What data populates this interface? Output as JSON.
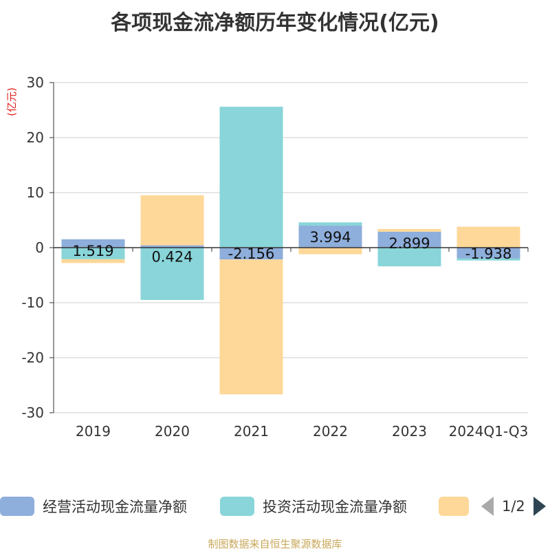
{
  "title": "各项现金流净额历年变化情况(亿元)",
  "source": "制图数据来自恒生聚源数据库",
  "legend_pager": "1/2",
  "chart_data": {
    "type": "bar",
    "stacked": true,
    "ylabel": "(亿元)",
    "ylim": [
      -30,
      30
    ],
    "yticks": [
      30,
      20,
      10,
      0,
      -10,
      -20,
      -30
    ],
    "grid": true,
    "legend_position": "bottom",
    "categories": [
      "2019",
      "2020",
      "2021",
      "2022",
      "2023",
      "2024Q1-Q3"
    ],
    "series": [
      {
        "name": "经营活动现金流量净额",
        "color": "#8eaedb",
        "values": [
          1.519,
          0.424,
          -2.156,
          3.994,
          2.899,
          -1.938
        ],
        "labels": [
          "1.519",
          "0.424",
          "-2.156",
          "3.994",
          "2.899",
          "-1.938"
        ]
      },
      {
        "name": "投资活动现金流量净额",
        "color": "#89d5d9",
        "values": [
          -2.1,
          -9.5,
          25.6,
          0.6,
          -3.4,
          -0.4
        ]
      },
      {
        "name": "",
        "color": "#fed899",
        "values": [
          -0.7,
          9.1,
          -24.5,
          -1.2,
          0.5,
          3.8
        ]
      }
    ]
  }
}
